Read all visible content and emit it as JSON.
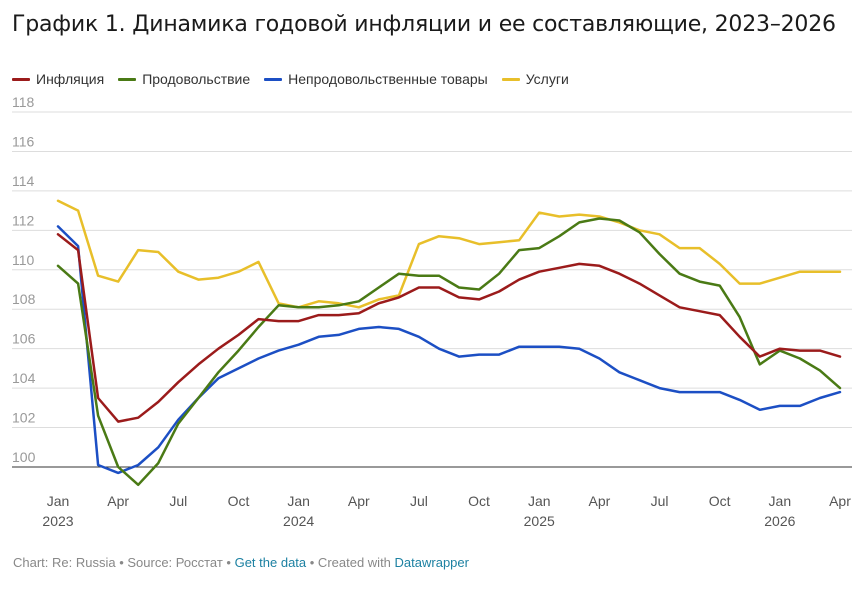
{
  "title": "График 1. Динамика годовой инфляции и ее составляющие, 2023–2026",
  "footer": {
    "source_text": "Chart: Re: Russia • Source: Росстат • ",
    "get_data": "Get the data",
    "created_with": " • Created with ",
    "tool": "Datawrapper"
  },
  "colors": {
    "inflation": "#9b1b1b",
    "food": "#4a7a15",
    "nonfood": "#1c4fc4",
    "services": "#e8bf2a",
    "grid": "#dddddd",
    "axis_text": "#999999",
    "link": "#1d81a2"
  },
  "chart_data": {
    "type": "line",
    "x": [
      "2023-01",
      "2023-02",
      "2023-03",
      "2023-04",
      "2023-05",
      "2023-06",
      "2023-07",
      "2023-08",
      "2023-09",
      "2023-10",
      "2023-11",
      "2023-12",
      "2024-01",
      "2024-02",
      "2024-03",
      "2024-04",
      "2024-05",
      "2024-06",
      "2024-07",
      "2024-08",
      "2024-09",
      "2024-10",
      "2024-11",
      "2024-12",
      "2025-01",
      "2025-02",
      "2025-03",
      "2025-04",
      "2025-05",
      "2025-06",
      "2025-07",
      "2025-08",
      "2025-09",
      "2025-10",
      "2025-11",
      "2025-12",
      "2026-01",
      "2026-02",
      "2026-03",
      "2026-04"
    ],
    "x_ticks": [
      {
        "label": "Jan",
        "sub": "2023",
        "index": 0
      },
      {
        "label": "Apr",
        "sub": "",
        "index": 3
      },
      {
        "label": "Jul",
        "sub": "",
        "index": 6
      },
      {
        "label": "Oct",
        "sub": "",
        "index": 9
      },
      {
        "label": "Jan",
        "sub": "2024",
        "index": 12
      },
      {
        "label": "Apr",
        "sub": "",
        "index": 15
      },
      {
        "label": "Jul",
        "sub": "",
        "index": 18
      },
      {
        "label": "Oct",
        "sub": "",
        "index": 21
      },
      {
        "label": "Jan",
        "sub": "2025",
        "index": 24
      },
      {
        "label": "Apr",
        "sub": "",
        "index": 27
      },
      {
        "label": "Jul",
        "sub": "",
        "index": 30
      },
      {
        "label": "Oct",
        "sub": "",
        "index": 33
      },
      {
        "label": "Jan",
        "sub": "2026",
        "index": 36
      },
      {
        "label": "Apr",
        "sub": "",
        "index": 39
      }
    ],
    "y_ticks": [
      100,
      102,
      104,
      106,
      108,
      110,
      112,
      114,
      116,
      118
    ],
    "ylim": [
      99.5,
      118
    ],
    "grid": true,
    "legend_position": "top-left",
    "series": [
      {
        "name": "Инфляция",
        "color_key": "inflation",
        "values": [
          111.8,
          111.0,
          103.5,
          102.3,
          102.5,
          103.3,
          104.3,
          105.2,
          106.0,
          106.7,
          107.5,
          107.4,
          107.4,
          107.7,
          107.7,
          107.8,
          108.3,
          108.6,
          109.1,
          109.1,
          108.6,
          108.5,
          108.9,
          109.5,
          109.9,
          110.1,
          110.3,
          110.2,
          109.8,
          109.3,
          108.7,
          108.1,
          107.9,
          107.7,
          106.6,
          105.6,
          106.0,
          105.9,
          105.9,
          105.6
        ]
      },
      {
        "name": "Продовольствие",
        "color_key": "food",
        "values": [
          110.2,
          109.3,
          102.6,
          100.0,
          99.1,
          100.2,
          102.2,
          103.5,
          104.8,
          105.9,
          107.1,
          108.2,
          108.1,
          108.1,
          108.2,
          108.4,
          109.1,
          109.8,
          109.7,
          109.7,
          109.1,
          109.0,
          109.8,
          111.0,
          111.1,
          111.7,
          112.4,
          112.6,
          112.5,
          111.9,
          110.8,
          109.8,
          109.4,
          109.2,
          107.6,
          105.2,
          105.9,
          105.5,
          104.9,
          104.0
        ]
      },
      {
        "name": "Непродовольственные товары",
        "color_key": "nonfood",
        "values": [
          112.2,
          111.2,
          100.1,
          99.7,
          100.1,
          101.0,
          102.4,
          103.5,
          104.5,
          105.0,
          105.5,
          105.9,
          106.2,
          106.6,
          106.7,
          107.0,
          107.1,
          107.0,
          106.6,
          106.0,
          105.6,
          105.7,
          105.7,
          106.1,
          106.1,
          106.1,
          106.0,
          105.5,
          104.8,
          104.4,
          104.0,
          103.8,
          103.8,
          103.8,
          103.4,
          102.9,
          103.1,
          103.1,
          103.5,
          103.8
        ]
      },
      {
        "name": "Услуги",
        "color_key": "services",
        "values": [
          113.5,
          113.0,
          109.7,
          109.4,
          111.0,
          110.9,
          109.9,
          109.5,
          109.6,
          109.9,
          110.4,
          108.3,
          108.1,
          108.4,
          108.3,
          108.1,
          108.5,
          108.7,
          111.3,
          111.7,
          111.6,
          111.3,
          111.4,
          111.5,
          112.9,
          112.7,
          112.8,
          112.7,
          112.4,
          112.0,
          111.8,
          111.1,
          111.1,
          110.3,
          109.3,
          109.3,
          109.6,
          109.9,
          109.9,
          109.9
        ]
      }
    ]
  }
}
